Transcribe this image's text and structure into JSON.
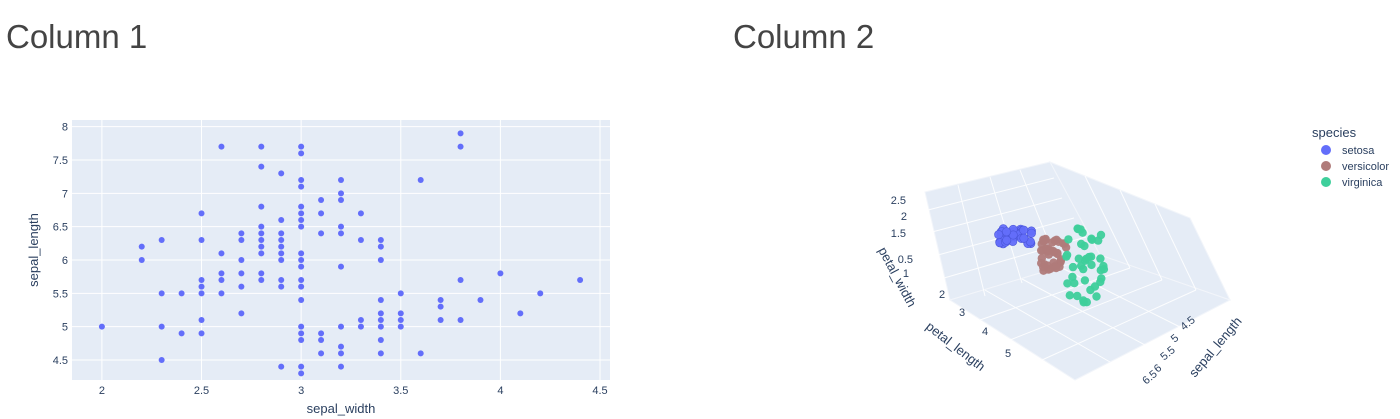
{
  "columns": {
    "col1_title": "Column 1",
    "col2_title": "Column 2"
  },
  "chart_data": [
    {
      "type": "scatter",
      "xlabel": "sepal_width",
      "ylabel": "sepal_length",
      "xlim": [
        1.85,
        4.55
      ],
      "ylim": [
        4.2,
        8.1
      ],
      "xticks": [
        "2",
        "2.5",
        "3",
        "3.5",
        "4",
        "4.5"
      ],
      "yticks": [
        "4.5",
        "5",
        "5.5",
        "6",
        "6.5",
        "7",
        "7.5",
        "8"
      ],
      "grid": true,
      "color": "#636efa",
      "points": [
        [
          2.0,
          5.0
        ],
        [
          2.2,
          6.2
        ],
        [
          2.2,
          6.0
        ],
        [
          2.3,
          6.3
        ],
        [
          2.3,
          5.5
        ],
        [
          2.3,
          5.0
        ],
        [
          2.3,
          4.5
        ],
        [
          2.4,
          5.5
        ],
        [
          2.4,
          4.9
        ],
        [
          2.5,
          6.7
        ],
        [
          2.5,
          6.3
        ],
        [
          2.5,
          5.7
        ],
        [
          2.5,
          5.6
        ],
        [
          2.5,
          5.5
        ],
        [
          2.5,
          5.1
        ],
        [
          2.5,
          4.9
        ],
        [
          2.6,
          7.7
        ],
        [
          2.6,
          6.1
        ],
        [
          2.6,
          5.8
        ],
        [
          2.6,
          5.7
        ],
        [
          2.6,
          5.5
        ],
        [
          2.7,
          6.4
        ],
        [
          2.7,
          6.3
        ],
        [
          2.7,
          6.0
        ],
        [
          2.7,
          5.8
        ],
        [
          2.7,
          5.6
        ],
        [
          2.7,
          5.2
        ],
        [
          2.8,
          7.7
        ],
        [
          2.8,
          7.4
        ],
        [
          2.8,
          6.8
        ],
        [
          2.8,
          6.5
        ],
        [
          2.8,
          6.4
        ],
        [
          2.8,
          6.3
        ],
        [
          2.8,
          6.2
        ],
        [
          2.8,
          6.1
        ],
        [
          2.8,
          5.8
        ],
        [
          2.8,
          5.7
        ],
        [
          2.9,
          7.3
        ],
        [
          2.9,
          6.6
        ],
        [
          2.9,
          6.4
        ],
        [
          2.9,
          6.3
        ],
        [
          2.9,
          6.2
        ],
        [
          2.9,
          6.1
        ],
        [
          2.9,
          6.0
        ],
        [
          2.9,
          5.7
        ],
        [
          2.9,
          5.6
        ],
        [
          2.9,
          4.4
        ],
        [
          3.0,
          7.7
        ],
        [
          3.0,
          7.6
        ],
        [
          3.0,
          7.2
        ],
        [
          3.0,
          7.1
        ],
        [
          3.0,
          6.8
        ],
        [
          3.0,
          6.7
        ],
        [
          3.0,
          6.6
        ],
        [
          3.0,
          6.5
        ],
        [
          3.0,
          6.1
        ],
        [
          3.0,
          6.0
        ],
        [
          3.0,
          5.9
        ],
        [
          3.0,
          5.7
        ],
        [
          3.0,
          5.6
        ],
        [
          3.0,
          5.4
        ],
        [
          3.0,
          5.0
        ],
        [
          3.0,
          4.9
        ],
        [
          3.0,
          4.8
        ],
        [
          3.0,
          4.4
        ],
        [
          3.0,
          4.3
        ],
        [
          3.1,
          6.9
        ],
        [
          3.1,
          6.7
        ],
        [
          3.1,
          6.4
        ],
        [
          3.1,
          4.9
        ],
        [
          3.1,
          4.8
        ],
        [
          3.1,
          4.6
        ],
        [
          3.2,
          7.2
        ],
        [
          3.2,
          7.0
        ],
        [
          3.2,
          6.9
        ],
        [
          3.2,
          6.5
        ],
        [
          3.2,
          6.4
        ],
        [
          3.2,
          5.9
        ],
        [
          3.2,
          5.0
        ],
        [
          3.2,
          4.7
        ],
        [
          3.2,
          4.6
        ],
        [
          3.2,
          4.4
        ],
        [
          3.3,
          6.7
        ],
        [
          3.3,
          6.3
        ],
        [
          3.3,
          5.1
        ],
        [
          3.3,
          5.0
        ],
        [
          3.4,
          6.3
        ],
        [
          3.4,
          6.2
        ],
        [
          3.4,
          6.0
        ],
        [
          3.4,
          5.4
        ],
        [
          3.4,
          5.2
        ],
        [
          3.4,
          5.1
        ],
        [
          3.4,
          5.0
        ],
        [
          3.4,
          4.8
        ],
        [
          3.4,
          4.6
        ],
        [
          3.5,
          5.5
        ],
        [
          3.5,
          5.2
        ],
        [
          3.5,
          5.1
        ],
        [
          3.5,
          5.0
        ],
        [
          3.6,
          7.2
        ],
        [
          3.6,
          4.6
        ],
        [
          3.7,
          5.4
        ],
        [
          3.7,
          5.3
        ],
        [
          3.7,
          5.1
        ],
        [
          3.8,
          7.9
        ],
        [
          3.8,
          7.7
        ],
        [
          3.8,
          5.7
        ],
        [
          3.8,
          5.1
        ],
        [
          3.9,
          5.4
        ],
        [
          4.0,
          5.8
        ],
        [
          4.1,
          5.2
        ],
        [
          4.2,
          5.5
        ],
        [
          4.4,
          5.7
        ]
      ]
    },
    {
      "type": "scatter3d",
      "xlabel": "petal_length",
      "ylabel": "sepal_length",
      "zlabel": "petal_width",
      "xticks": [
        "2",
        "3",
        "4",
        "5"
      ],
      "yticks": [
        "4.5",
        "5",
        "5.5",
        "6",
        "6.5"
      ],
      "zticks": [
        "0.5",
        "1",
        "1.5",
        "2",
        "2.5"
      ],
      "legend_title": "species",
      "legend_placement": "top-right",
      "series": [
        {
          "name": "setosa",
          "color": "#636efa"
        },
        {
          "name": "versicolor",
          "color": "#b07b7a"
        },
        {
          "name": "virginica",
          "color": "#3ecf9b"
        }
      ]
    }
  ]
}
